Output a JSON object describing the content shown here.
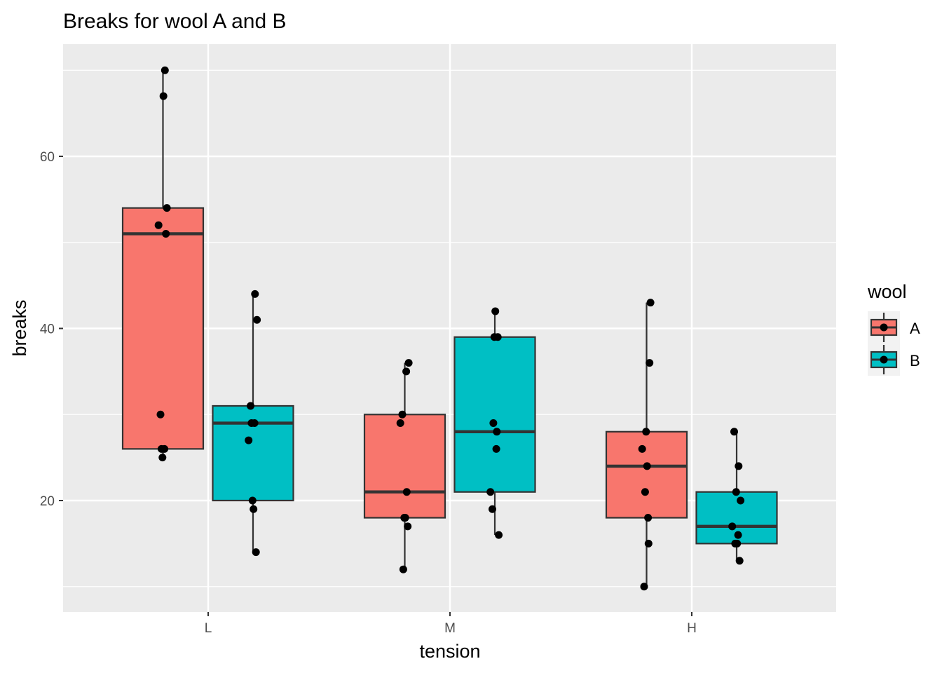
{
  "chart_data": {
    "type": "boxplot",
    "title": "Breaks for wool A and B",
    "xlabel": "tension",
    "ylabel": "breaks",
    "categories": [
      "L",
      "M",
      "H"
    ],
    "ylim": [
      7,
      73
    ],
    "yticks": [
      20,
      40,
      60
    ],
    "grid": true,
    "legend": {
      "title": "wool",
      "position": "right",
      "entries": [
        "A",
        "B"
      ]
    },
    "colors": {
      "A": "#F8766D",
      "B": "#00BFC4",
      "panel": "#EBEBEB"
    },
    "series": [
      {
        "name": "A",
        "points": {
          "L": [
            26,
            30,
            54,
            25,
            70,
            52,
            51,
            26,
            67
          ],
          "M": [
            18,
            21,
            29,
            17,
            12,
            18,
            35,
            30,
            36
          ],
          "H": [
            36,
            21,
            24,
            18,
            10,
            43,
            28,
            15,
            26
          ]
        }
      },
      {
        "name": "B",
        "points": {
          "L": [
            27,
            14,
            29,
            19,
            29,
            31,
            41,
            20,
            44
          ],
          "M": [
            42,
            26,
            19,
            16,
            39,
            28,
            21,
            39,
            29
          ],
          "H": [
            20,
            21,
            24,
            17,
            13,
            15,
            15,
            16,
            28
          ]
        }
      }
    ]
  }
}
